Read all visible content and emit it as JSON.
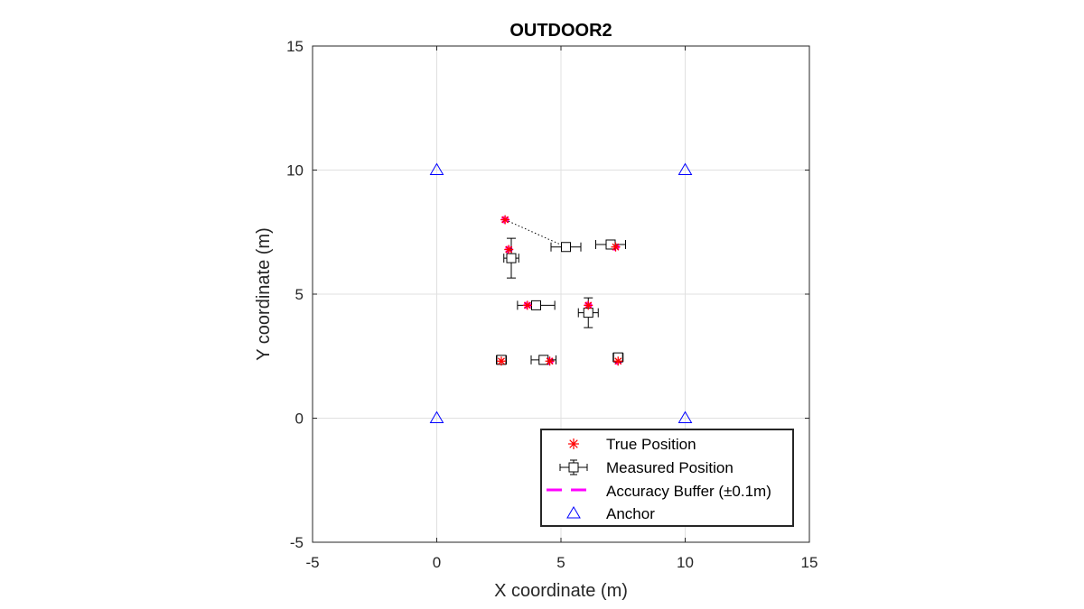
{
  "chart_data": {
    "type": "scatter",
    "title": "OUTDOOR2",
    "xlabel": "X coordinate (m)",
    "ylabel": "Y coordinate (m)",
    "xlim": [
      -5,
      15
    ],
    "ylim": [
      -5,
      15
    ],
    "xticks": [
      -5,
      0,
      5,
      10,
      15
    ],
    "yticks": [
      -5,
      0,
      5,
      10,
      15
    ],
    "xtick_labels": [
      "-5",
      "0",
      "5",
      "10",
      "15"
    ],
    "ytick_labels": [
      "-5",
      "0",
      "5",
      "10",
      "15"
    ],
    "grid": true,
    "legend_position": "bottom-right",
    "colors": {
      "true_position": "#ff0000",
      "buffer": "#ff00ff",
      "measured": "#000000",
      "anchor": "#0000ff",
      "grid": "#e0e0e0"
    },
    "series": [
      {
        "name": "True Position",
        "marker": "asterisk",
        "points": [
          {
            "x": 2.75,
            "y": 8.0
          },
          {
            "x": 2.9,
            "y": 6.8
          },
          {
            "x": 7.2,
            "y": 6.9
          },
          {
            "x": 3.65,
            "y": 4.55
          },
          {
            "x": 6.1,
            "y": 4.55
          },
          {
            "x": 2.6,
            "y": 2.3
          },
          {
            "x": 4.55,
            "y": 2.3
          },
          {
            "x": 7.3,
            "y": 2.3
          }
        ]
      },
      {
        "name": "Measured Position",
        "marker": "square-errorbar",
        "points": [
          {
            "x": 5.2,
            "y": 6.9,
            "xerr": 0.6,
            "yerr": 0.1
          },
          {
            "x": 3.0,
            "y": 6.45,
            "xerr": 0.3,
            "yerr": 0.8
          },
          {
            "x": 7.0,
            "y": 7.0,
            "xerr": 0.6,
            "yerr": 0.1
          },
          {
            "x": 4.0,
            "y": 4.55,
            "xerr": 0.75,
            "yerr": 0.1
          },
          {
            "x": 6.1,
            "y": 4.25,
            "xerr": 0.4,
            "yerr": 0.6
          },
          {
            "x": 2.6,
            "y": 2.35,
            "xerr": 0.2,
            "yerr": 0.1
          },
          {
            "x": 4.3,
            "y": 2.35,
            "xerr": 0.5,
            "yerr": 0.1
          },
          {
            "x": 7.3,
            "y": 2.45,
            "xerr": 0.2,
            "yerr": 0.1
          }
        ]
      },
      {
        "name": "Accuracy Buffer (±0.1m)",
        "marker": "dashed-circle",
        "radius": 0.1,
        "centers": "true_position"
      },
      {
        "name": "Anchor",
        "marker": "triangle",
        "points": [
          {
            "x": 0,
            "y": 0
          },
          {
            "x": 10,
            "y": 0
          },
          {
            "x": 0,
            "y": 10
          },
          {
            "x": 10,
            "y": 10
          }
        ]
      }
    ],
    "connections": [
      {
        "from": {
          "x": 2.75,
          "y": 8.0
        },
        "to": {
          "x": 5.2,
          "y": 6.9
        },
        "style": "dotted"
      }
    ]
  }
}
